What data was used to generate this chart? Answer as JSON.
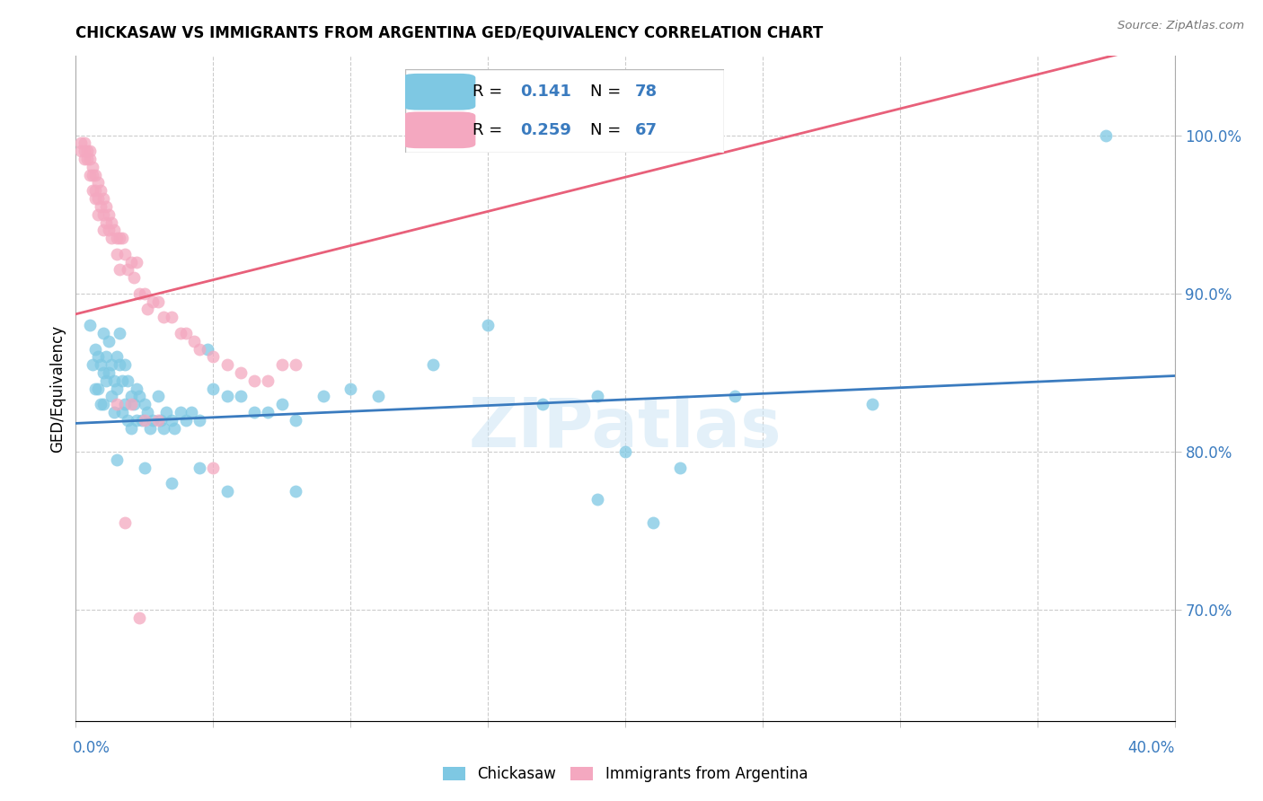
{
  "title": "CHICKASAW VS IMMIGRANTS FROM ARGENTINA GED/EQUIVALENCY CORRELATION CHART",
  "source": "Source: ZipAtlas.com",
  "ylabel": "GED/Equivalency",
  "ytick_values": [
    0.7,
    0.8,
    0.9,
    1.0
  ],
  "xlim": [
    0.0,
    0.4
  ],
  "ylim": [
    0.63,
    1.05
  ],
  "blue_color": "#7ec8e3",
  "pink_color": "#f4a8c0",
  "blue_line_color": "#3a7bbf",
  "pink_line_color": "#e8607a",
  "watermark": "ZIPatlas",
  "blue_points": [
    [
      0.005,
      0.88
    ],
    [
      0.006,
      0.855
    ],
    [
      0.007,
      0.865
    ],
    [
      0.007,
      0.84
    ],
    [
      0.008,
      0.86
    ],
    [
      0.008,
      0.84
    ],
    [
      0.009,
      0.855
    ],
    [
      0.009,
      0.83
    ],
    [
      0.01,
      0.875
    ],
    [
      0.01,
      0.85
    ],
    [
      0.01,
      0.83
    ],
    [
      0.011,
      0.86
    ],
    [
      0.011,
      0.845
    ],
    [
      0.012,
      0.87
    ],
    [
      0.012,
      0.85
    ],
    [
      0.013,
      0.855
    ],
    [
      0.013,
      0.835
    ],
    [
      0.014,
      0.845
    ],
    [
      0.014,
      0.825
    ],
    [
      0.015,
      0.86
    ],
    [
      0.015,
      0.84
    ],
    [
      0.016,
      0.875
    ],
    [
      0.016,
      0.855
    ],
    [
      0.017,
      0.845
    ],
    [
      0.017,
      0.825
    ],
    [
      0.018,
      0.855
    ],
    [
      0.018,
      0.83
    ],
    [
      0.019,
      0.845
    ],
    [
      0.019,
      0.82
    ],
    [
      0.02,
      0.835
    ],
    [
      0.02,
      0.815
    ],
    [
      0.021,
      0.83
    ],
    [
      0.022,
      0.84
    ],
    [
      0.022,
      0.82
    ],
    [
      0.023,
      0.835
    ],
    [
      0.024,
      0.82
    ],
    [
      0.025,
      0.83
    ],
    [
      0.026,
      0.825
    ],
    [
      0.027,
      0.815
    ],
    [
      0.028,
      0.82
    ],
    [
      0.03,
      0.835
    ],
    [
      0.031,
      0.82
    ],
    [
      0.032,
      0.815
    ],
    [
      0.033,
      0.825
    ],
    [
      0.035,
      0.82
    ],
    [
      0.036,
      0.815
    ],
    [
      0.038,
      0.825
    ],
    [
      0.04,
      0.82
    ],
    [
      0.042,
      0.825
    ],
    [
      0.045,
      0.82
    ],
    [
      0.048,
      0.865
    ],
    [
      0.05,
      0.84
    ],
    [
      0.055,
      0.835
    ],
    [
      0.06,
      0.835
    ],
    [
      0.065,
      0.825
    ],
    [
      0.07,
      0.825
    ],
    [
      0.075,
      0.83
    ],
    [
      0.08,
      0.82
    ],
    [
      0.09,
      0.835
    ],
    [
      0.1,
      0.84
    ],
    [
      0.11,
      0.835
    ],
    [
      0.13,
      0.855
    ],
    [
      0.15,
      0.88
    ],
    [
      0.17,
      0.83
    ],
    [
      0.19,
      0.835
    ],
    [
      0.2,
      0.8
    ],
    [
      0.22,
      0.79
    ],
    [
      0.24,
      0.835
    ],
    [
      0.29,
      0.83
    ],
    [
      0.015,
      0.795
    ],
    [
      0.025,
      0.79
    ],
    [
      0.035,
      0.78
    ],
    [
      0.045,
      0.79
    ],
    [
      0.055,
      0.775
    ],
    [
      0.08,
      0.775
    ],
    [
      0.19,
      0.77
    ],
    [
      0.21,
      0.755
    ],
    [
      0.375,
      1.0
    ]
  ],
  "pink_points": [
    [
      0.002,
      0.995
    ],
    [
      0.002,
      0.99
    ],
    [
      0.003,
      0.995
    ],
    [
      0.003,
      0.99
    ],
    [
      0.003,
      0.985
    ],
    [
      0.004,
      0.99
    ],
    [
      0.004,
      0.985
    ],
    [
      0.005,
      0.99
    ],
    [
      0.005,
      0.985
    ],
    [
      0.005,
      0.975
    ],
    [
      0.006,
      0.98
    ],
    [
      0.006,
      0.975
    ],
    [
      0.006,
      0.965
    ],
    [
      0.007,
      0.975
    ],
    [
      0.007,
      0.965
    ],
    [
      0.007,
      0.96
    ],
    [
      0.008,
      0.97
    ],
    [
      0.008,
      0.96
    ],
    [
      0.008,
      0.95
    ],
    [
      0.009,
      0.965
    ],
    [
      0.009,
      0.955
    ],
    [
      0.01,
      0.96
    ],
    [
      0.01,
      0.95
    ],
    [
      0.01,
      0.94
    ],
    [
      0.011,
      0.955
    ],
    [
      0.011,
      0.945
    ],
    [
      0.012,
      0.95
    ],
    [
      0.012,
      0.94
    ],
    [
      0.013,
      0.945
    ],
    [
      0.013,
      0.935
    ],
    [
      0.014,
      0.94
    ],
    [
      0.015,
      0.935
    ],
    [
      0.015,
      0.925
    ],
    [
      0.016,
      0.935
    ],
    [
      0.016,
      0.915
    ],
    [
      0.017,
      0.935
    ],
    [
      0.018,
      0.925
    ],
    [
      0.019,
      0.915
    ],
    [
      0.02,
      0.92
    ],
    [
      0.021,
      0.91
    ],
    [
      0.022,
      0.92
    ],
    [
      0.023,
      0.9
    ],
    [
      0.025,
      0.9
    ],
    [
      0.026,
      0.89
    ],
    [
      0.028,
      0.895
    ],
    [
      0.03,
      0.895
    ],
    [
      0.032,
      0.885
    ],
    [
      0.035,
      0.885
    ],
    [
      0.038,
      0.875
    ],
    [
      0.04,
      0.875
    ],
    [
      0.043,
      0.87
    ],
    [
      0.045,
      0.865
    ],
    [
      0.05,
      0.86
    ],
    [
      0.055,
      0.855
    ],
    [
      0.06,
      0.85
    ],
    [
      0.065,
      0.845
    ],
    [
      0.07,
      0.845
    ],
    [
      0.075,
      0.855
    ],
    [
      0.08,
      0.855
    ],
    [
      0.015,
      0.83
    ],
    [
      0.02,
      0.83
    ],
    [
      0.025,
      0.82
    ],
    [
      0.03,
      0.82
    ],
    [
      0.018,
      0.755
    ],
    [
      0.023,
      0.695
    ],
    [
      0.05,
      0.79
    ]
  ]
}
